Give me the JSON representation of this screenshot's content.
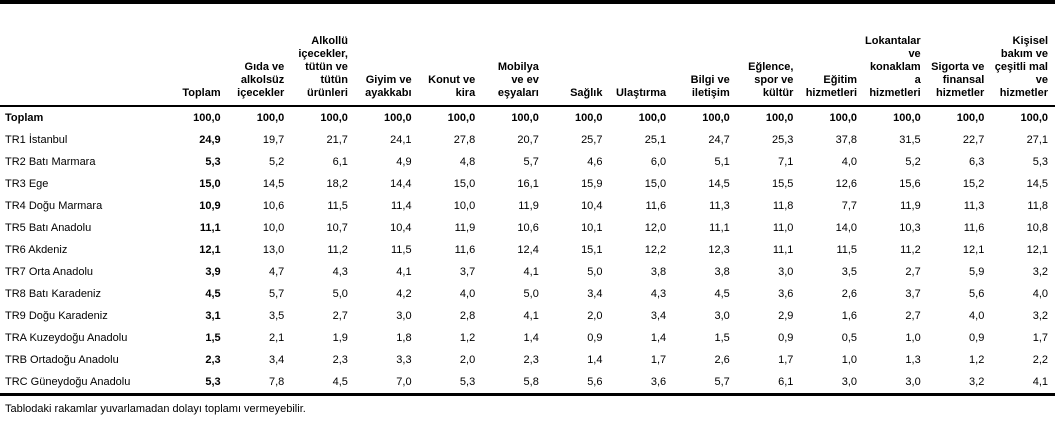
{
  "colors": {
    "background": "#ffffff",
    "text": "#000000",
    "rule": "#000000"
  },
  "table": {
    "row_header_label": "",
    "columns": [
      "Toplam",
      "Gıda ve alkolsüz içecekler",
      "Alkollü içecekler, tütün ve tütün ürünleri",
      "Giyim ve ayakkabı",
      "Konut ve kira",
      "Mobilya ve ev eşyaları",
      "Sağlık",
      "Ulaştırma",
      "Bilgi ve iletişim",
      "Eğlence, spor ve kültür",
      "Eğitim hizmetleri",
      "Lokantalar ve konaklama hizmetleri",
      "Sigorta ve finansal hizmetler",
      "Kişisel bakım ve çeşitli mal ve hizmetler"
    ],
    "rows": [
      {
        "label": "Toplam",
        "bold": true,
        "values": [
          "100,0",
          "100,0",
          "100,0",
          "100,0",
          "100,0",
          "100,0",
          "100,0",
          "100,0",
          "100,0",
          "100,0",
          "100,0",
          "100,0",
          "100,0",
          "100,0"
        ]
      },
      {
        "label": "TR1 İstanbul",
        "bold": false,
        "values": [
          "24,9",
          "19,7",
          "21,7",
          "24,1",
          "27,8",
          "20,7",
          "25,7",
          "25,1",
          "24,7",
          "25,3",
          "37,8",
          "31,5",
          "22,7",
          "27,1"
        ]
      },
      {
        "label": "TR2 Batı Marmara",
        "bold": false,
        "values": [
          "5,3",
          "5,2",
          "6,1",
          "4,9",
          "4,8",
          "5,7",
          "4,6",
          "6,0",
          "5,1",
          "7,1",
          "4,0",
          "5,2",
          "6,3",
          "5,3"
        ]
      },
      {
        "label": "TR3 Ege",
        "bold": false,
        "values": [
          "15,0",
          "14,5",
          "18,2",
          "14,4",
          "15,0",
          "16,1",
          "15,9",
          "15,0",
          "14,5",
          "15,5",
          "12,6",
          "15,6",
          "15,2",
          "14,5"
        ]
      },
      {
        "label": "TR4 Doğu Marmara",
        "bold": false,
        "values": [
          "10,9",
          "10,6",
          "11,5",
          "11,4",
          "10,0",
          "11,9",
          "10,4",
          "11,6",
          "11,3",
          "11,8",
          "7,7",
          "11,9",
          "11,3",
          "11,8"
        ]
      },
      {
        "label": "TR5 Batı Anadolu",
        "bold": false,
        "values": [
          "11,1",
          "10,0",
          "10,7",
          "10,4",
          "11,9",
          "10,6",
          "10,1",
          "12,0",
          "11,1",
          "11,0",
          "14,0",
          "10,3",
          "11,6",
          "10,8"
        ]
      },
      {
        "label": "TR6 Akdeniz",
        "bold": false,
        "values": [
          "12,1",
          "13,0",
          "11,2",
          "11,5",
          "11,6",
          "12,4",
          "15,1",
          "12,2",
          "12,3",
          "11,1",
          "11,5",
          "11,2",
          "12,1",
          "12,1"
        ]
      },
      {
        "label": "TR7 Orta Anadolu",
        "bold": false,
        "values": [
          "3,9",
          "4,7",
          "4,3",
          "4,1",
          "3,7",
          "4,1",
          "5,0",
          "3,8",
          "3,8",
          "3,0",
          "3,5",
          "2,7",
          "5,9",
          "3,2"
        ]
      },
      {
        "label": "TR8 Batı Karadeniz",
        "bold": false,
        "values": [
          "4,5",
          "5,7",
          "5,0",
          "4,2",
          "4,0",
          "5,0",
          "3,4",
          "4,3",
          "4,5",
          "3,6",
          "2,6",
          "3,7",
          "5,6",
          "4,0"
        ]
      },
      {
        "label": "TR9 Doğu Karadeniz",
        "bold": false,
        "values": [
          "3,1",
          "3,5",
          "2,7",
          "3,0",
          "2,8",
          "4,1",
          "2,0",
          "3,4",
          "3,0",
          "2,9",
          "1,6",
          "2,7",
          "4,0",
          "3,2"
        ]
      },
      {
        "label": "TRA Kuzeydoğu Anadolu",
        "bold": false,
        "values": [
          "1,5",
          "2,1",
          "1,9",
          "1,8",
          "1,2",
          "1,4",
          "0,9",
          "1,4",
          "1,5",
          "0,9",
          "0,5",
          "1,0",
          "0,9",
          "1,7"
        ]
      },
      {
        "label": "TRB Ortadoğu Anadolu",
        "bold": false,
        "values": [
          "2,3",
          "3,4",
          "2,3",
          "3,3",
          "2,0",
          "2,3",
          "1,4",
          "1,7",
          "2,6",
          "1,7",
          "1,0",
          "1,3",
          "1,2",
          "2,2"
        ]
      },
      {
        "label": "TRC Güneydoğu Anadolu",
        "bold": false,
        "values": [
          "5,3",
          "7,8",
          "4,5",
          "7,0",
          "5,3",
          "5,8",
          "5,6",
          "3,6",
          "5,7",
          "6,1",
          "3,0",
          "3,0",
          "3,2",
          "4,1"
        ]
      }
    ],
    "footnote": "Tablodaki rakamlar yuvarlamadan dolayı toplamı vermeyebilir."
  }
}
